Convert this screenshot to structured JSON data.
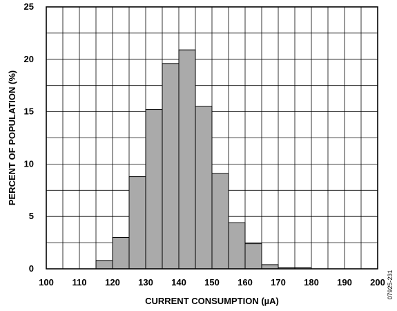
{
  "chart_data": {
    "type": "bar",
    "xlabel": "CURRENT CONSUMPTION (µA)",
    "ylabel": "PERCENT OF POPULATION (%)",
    "xlim": [
      100,
      200
    ],
    "ylim": [
      0,
      25
    ],
    "x_ticks": [
      "100",
      "110",
      "120",
      "130",
      "140",
      "150",
      "160",
      "170",
      "180",
      "190",
      "200"
    ],
    "y_ticks": [
      "0",
      "5",
      "10",
      "15",
      "20",
      "25"
    ],
    "bin_width": 5,
    "bins": [
      {
        "start": 115,
        "value": 0.8
      },
      {
        "start": 120,
        "value": 3.0
      },
      {
        "start": 125,
        "value": 8.8
      },
      {
        "start": 130,
        "value": 15.2
      },
      {
        "start": 135,
        "value": 19.6
      },
      {
        "start": 140,
        "value": 20.9
      },
      {
        "start": 145,
        "value": 15.5
      },
      {
        "start": 150,
        "value": 9.1
      },
      {
        "start": 155,
        "value": 4.4
      },
      {
        "start": 160,
        "value": 2.4
      },
      {
        "start": 165,
        "value": 0.4
      },
      {
        "start": 170,
        "value": 0.1
      },
      {
        "start": 175,
        "value": 0.1
      }
    ],
    "grid": true,
    "bar_color": "#aaaaaa"
  },
  "figure_id": "07925-231"
}
